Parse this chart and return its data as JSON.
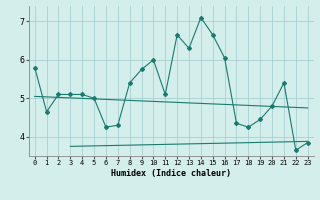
{
  "x": [
    0,
    1,
    2,
    3,
    4,
    5,
    6,
    7,
    8,
    9,
    10,
    11,
    12,
    13,
    14,
    15,
    16,
    17,
    18,
    19,
    20,
    21,
    22,
    23
  ],
  "line1": [
    5.8,
    4.65,
    5.1,
    5.1,
    5.1,
    5.0,
    4.25,
    4.3,
    5.4,
    5.75,
    6.0,
    5.1,
    6.65,
    6.3,
    7.1,
    6.65,
    6.05,
    4.35,
    4.25,
    4.45,
    4.8,
    5.4,
    3.65,
    3.85
  ],
  "trend1_x": [
    0,
    23
  ],
  "trend1_y": [
    5.05,
    4.75
  ],
  "trend2_x": [
    3,
    23
  ],
  "trend2_y": [
    3.75,
    3.88
  ],
  "line_color": "#1a7a6e",
  "bg_color": "#d4eeeb",
  "grid_color": "#a0cccc",
  "xlabel": "Humidex (Indice chaleur)",
  "ylim": [
    3.5,
    7.4
  ],
  "xlim": [
    -0.5,
    23.5
  ],
  "yticks": [
    4,
    5,
    6,
    7
  ],
  "xticks": [
    0,
    1,
    2,
    3,
    4,
    5,
    6,
    7,
    8,
    9,
    10,
    11,
    12,
    13,
    14,
    15,
    16,
    17,
    18,
    19,
    20,
    21,
    22,
    23
  ]
}
